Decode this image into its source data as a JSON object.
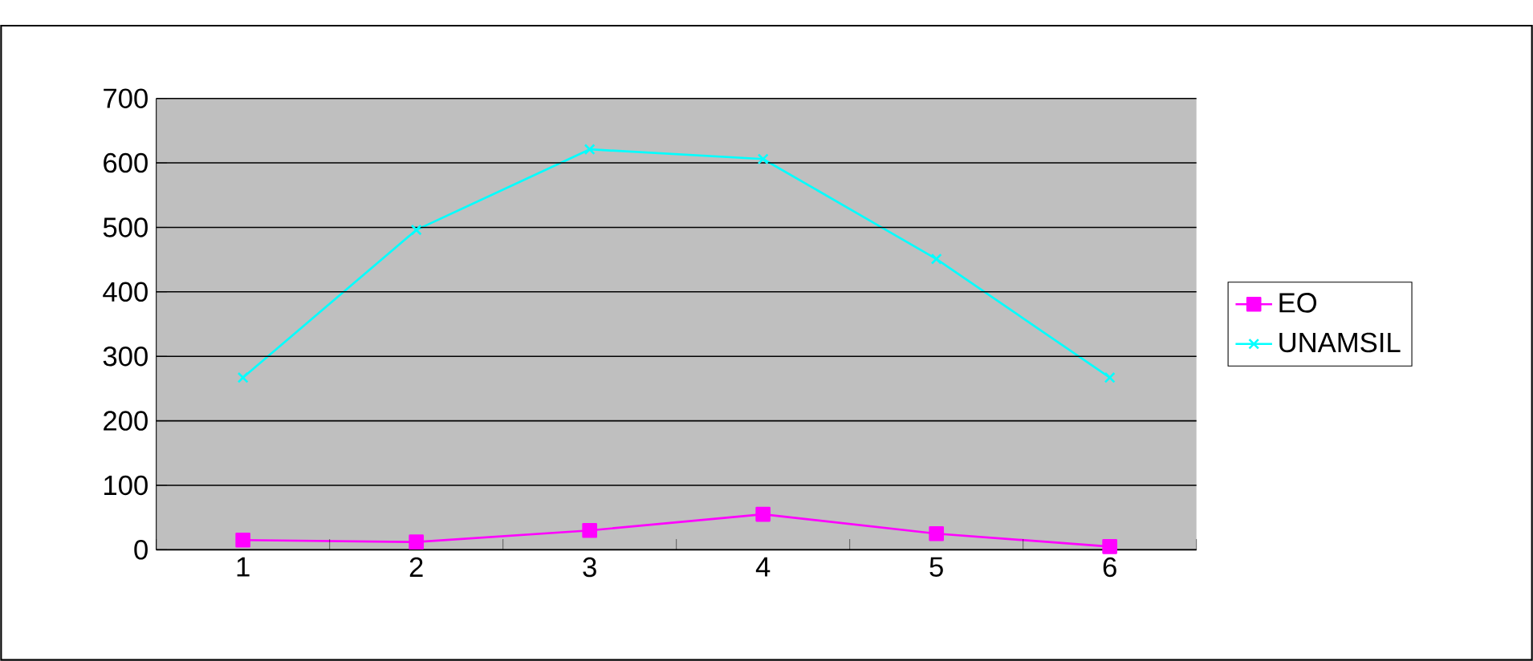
{
  "chart_data": {
    "type": "line",
    "categories": [
      "1",
      "2",
      "3",
      "4",
      "5",
      "6"
    ],
    "series": [
      {
        "name": "EO",
        "color": "#ff00ff",
        "marker": "square",
        "values": [
          15,
          12,
          30,
          55,
          25,
          5
        ]
      },
      {
        "name": "UNAMSIL",
        "color": "#00ffff",
        "marker": "cross",
        "values": [
          267,
          496,
          621,
          606,
          451,
          267
        ]
      }
    ],
    "ylim": [
      0,
      700
    ],
    "yticks": [
      0,
      100,
      200,
      300,
      400,
      500,
      600,
      700
    ],
    "grid": "y",
    "legend": "right"
  }
}
